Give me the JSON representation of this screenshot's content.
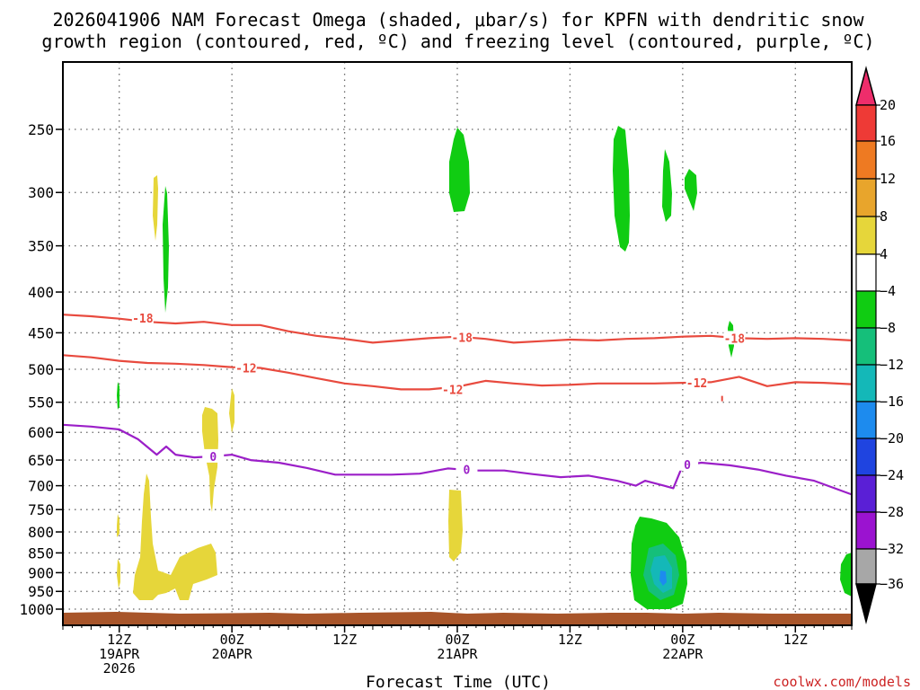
{
  "chart_data": {
    "type": "heatmap",
    "title_line1": "2026041906 NAM Forecast Omega (shaded, μbar/s) for KPFN with dendritic snow",
    "title_line2": "growth region (contoured, red, ºC) and freezing level (contoured, purple, ºC)",
    "xlabel": "Forecast Time (UTC)",
    "credit": "coolwx.com/models",
    "x_ticks": [
      {
        "h": 6,
        "line1": "12Z",
        "line2": "19APR",
        "line3": "2026"
      },
      {
        "h": 18,
        "line1": "00Z",
        "line2": "20APR",
        "line3": ""
      },
      {
        "h": 30,
        "line1": "12Z",
        "line2": "",
        "line3": ""
      },
      {
        "h": 42,
        "line1": "00Z",
        "line2": "21APR",
        "line3": ""
      },
      {
        "h": 54,
        "line1": "12Z",
        "line2": "",
        "line3": ""
      },
      {
        "h": 66,
        "line1": "00Z",
        "line2": "22APR",
        "line3": ""
      },
      {
        "h": 78,
        "line1": "12Z",
        "line2": "",
        "line3": ""
      }
    ],
    "x_range_hours": [
      0,
      84
    ],
    "y_levels": [
      "250",
      "300",
      "350",
      "400",
      "450",
      "500",
      "550",
      "600",
      "650",
      "700",
      "750",
      "800",
      "850",
      "900",
      "950",
      "1000"
    ],
    "y_log_scale": true,
    "grid": true,
    "colorbar": {
      "labels": [
        "20",
        "16",
        "12",
        "8",
        "4",
        "−4",
        "−8",
        "−12",
        "−16",
        "−20",
        "−24",
        "−28",
        "−32",
        "−36"
      ],
      "colors": [
        "#ee2d6b",
        "#ee3a36",
        "#ee7a22",
        "#e8a52c",
        "#e6d63a",
        "#ffffff",
        "#10cc12",
        "#15bf7a",
        "#14b8b8",
        "#1d8bee",
        "#1f44e0",
        "#5a1fd6",
        "#9b13d0",
        "#a7a7a7",
        "#000000"
      ],
      "colors_note": "top arrow through bottom arrow, one per band"
    },
    "contours": {
      "dgz_top": {
        "label": "-18",
        "color": "#e84a3e",
        "points": [
          [
            0,
            427
          ],
          [
            3,
            429
          ],
          [
            6,
            432
          ],
          [
            9,
            436
          ],
          [
            12,
            438
          ],
          [
            15,
            436
          ],
          [
            18,
            440
          ],
          [
            21,
            440
          ],
          [
            24,
            448
          ],
          [
            27,
            454
          ],
          [
            30,
            458
          ],
          [
            33,
            463
          ],
          [
            36,
            460
          ],
          [
            39,
            457
          ],
          [
            42,
            455
          ],
          [
            45,
            458
          ],
          [
            48,
            463
          ],
          [
            51,
            461
          ],
          [
            54,
            459
          ],
          [
            57,
            460
          ],
          [
            60,
            458
          ],
          [
            63,
            457
          ],
          [
            66,
            455
          ],
          [
            69,
            454
          ],
          [
            72,
            457
          ],
          [
            75,
            458
          ],
          [
            78,
            457
          ],
          [
            81,
            458
          ],
          [
            84,
            460
          ]
        ]
      },
      "dgz_bottom": {
        "label": "-12",
        "color": "#e84a3e",
        "points": [
          [
            0,
            480
          ],
          [
            3,
            483
          ],
          [
            6,
            488
          ],
          [
            9,
            491
          ],
          [
            12,
            492
          ],
          [
            15,
            494
          ],
          [
            18,
            497
          ],
          [
            21,
            498
          ],
          [
            24,
            505
          ],
          [
            27,
            513
          ],
          [
            30,
            521
          ],
          [
            33,
            525
          ],
          [
            36,
            530
          ],
          [
            39,
            530
          ],
          [
            42,
            526
          ],
          [
            45,
            517
          ],
          [
            48,
            521
          ],
          [
            51,
            524
          ],
          [
            54,
            523
          ],
          [
            57,
            521
          ],
          [
            60,
            521
          ],
          [
            63,
            521
          ],
          [
            66,
            520
          ],
          [
            69,
            519
          ],
          [
            72,
            511
          ],
          [
            75,
            525
          ],
          [
            78,
            519
          ],
          [
            81,
            520
          ],
          [
            84,
            522
          ]
        ]
      },
      "freezing": {
        "label": "0",
        "color": "#9b1fc8",
        "points": [
          [
            0,
            587
          ],
          [
            3,
            590
          ],
          [
            6,
            595
          ],
          [
            8,
            612
          ],
          [
            10,
            640
          ],
          [
            11,
            625
          ],
          [
            12,
            640
          ],
          [
            14,
            645
          ],
          [
            16,
            643
          ],
          [
            18,
            640
          ],
          [
            20,
            650
          ],
          [
            23,
            655
          ],
          [
            26,
            665
          ],
          [
            29,
            678
          ],
          [
            32,
            678
          ],
          [
            35,
            678
          ],
          [
            38,
            676
          ],
          [
            41,
            666
          ],
          [
            44,
            670
          ],
          [
            47,
            670
          ],
          [
            50,
            677
          ],
          [
            53,
            683
          ],
          [
            56,
            680
          ],
          [
            59,
            690
          ],
          [
            61,
            700
          ],
          [
            62,
            690
          ],
          [
            64,
            700
          ],
          [
            65,
            705
          ],
          [
            66,
            660
          ],
          [
            68,
            655
          ],
          [
            71,
            660
          ],
          [
            74,
            668
          ],
          [
            77,
            680
          ],
          [
            80,
            690
          ],
          [
            84,
            718
          ]
        ]
      }
    },
    "contour_labels": [
      {
        "text": "-18",
        "h": 8.5,
        "p": 431
      },
      {
        "text": "-18",
        "h": 42.5,
        "p": 456
      },
      {
        "text": "-18",
        "h": 71.5,
        "p": 457
      },
      {
        "text": "-12",
        "h": 19.5,
        "p": 498
      },
      {
        "text": "-12",
        "h": 41.5,
        "p": 530
      },
      {
        "text": "-12",
        "h": 67.5,
        "p": 520
      },
      {
        "text": "0",
        "h": 16,
        "p": 643
      },
      {
        "text": "0",
        "h": 43,
        "p": 668
      },
      {
        "text": "0",
        "h": 66.5,
        "p": 658
      }
    ]
  }
}
